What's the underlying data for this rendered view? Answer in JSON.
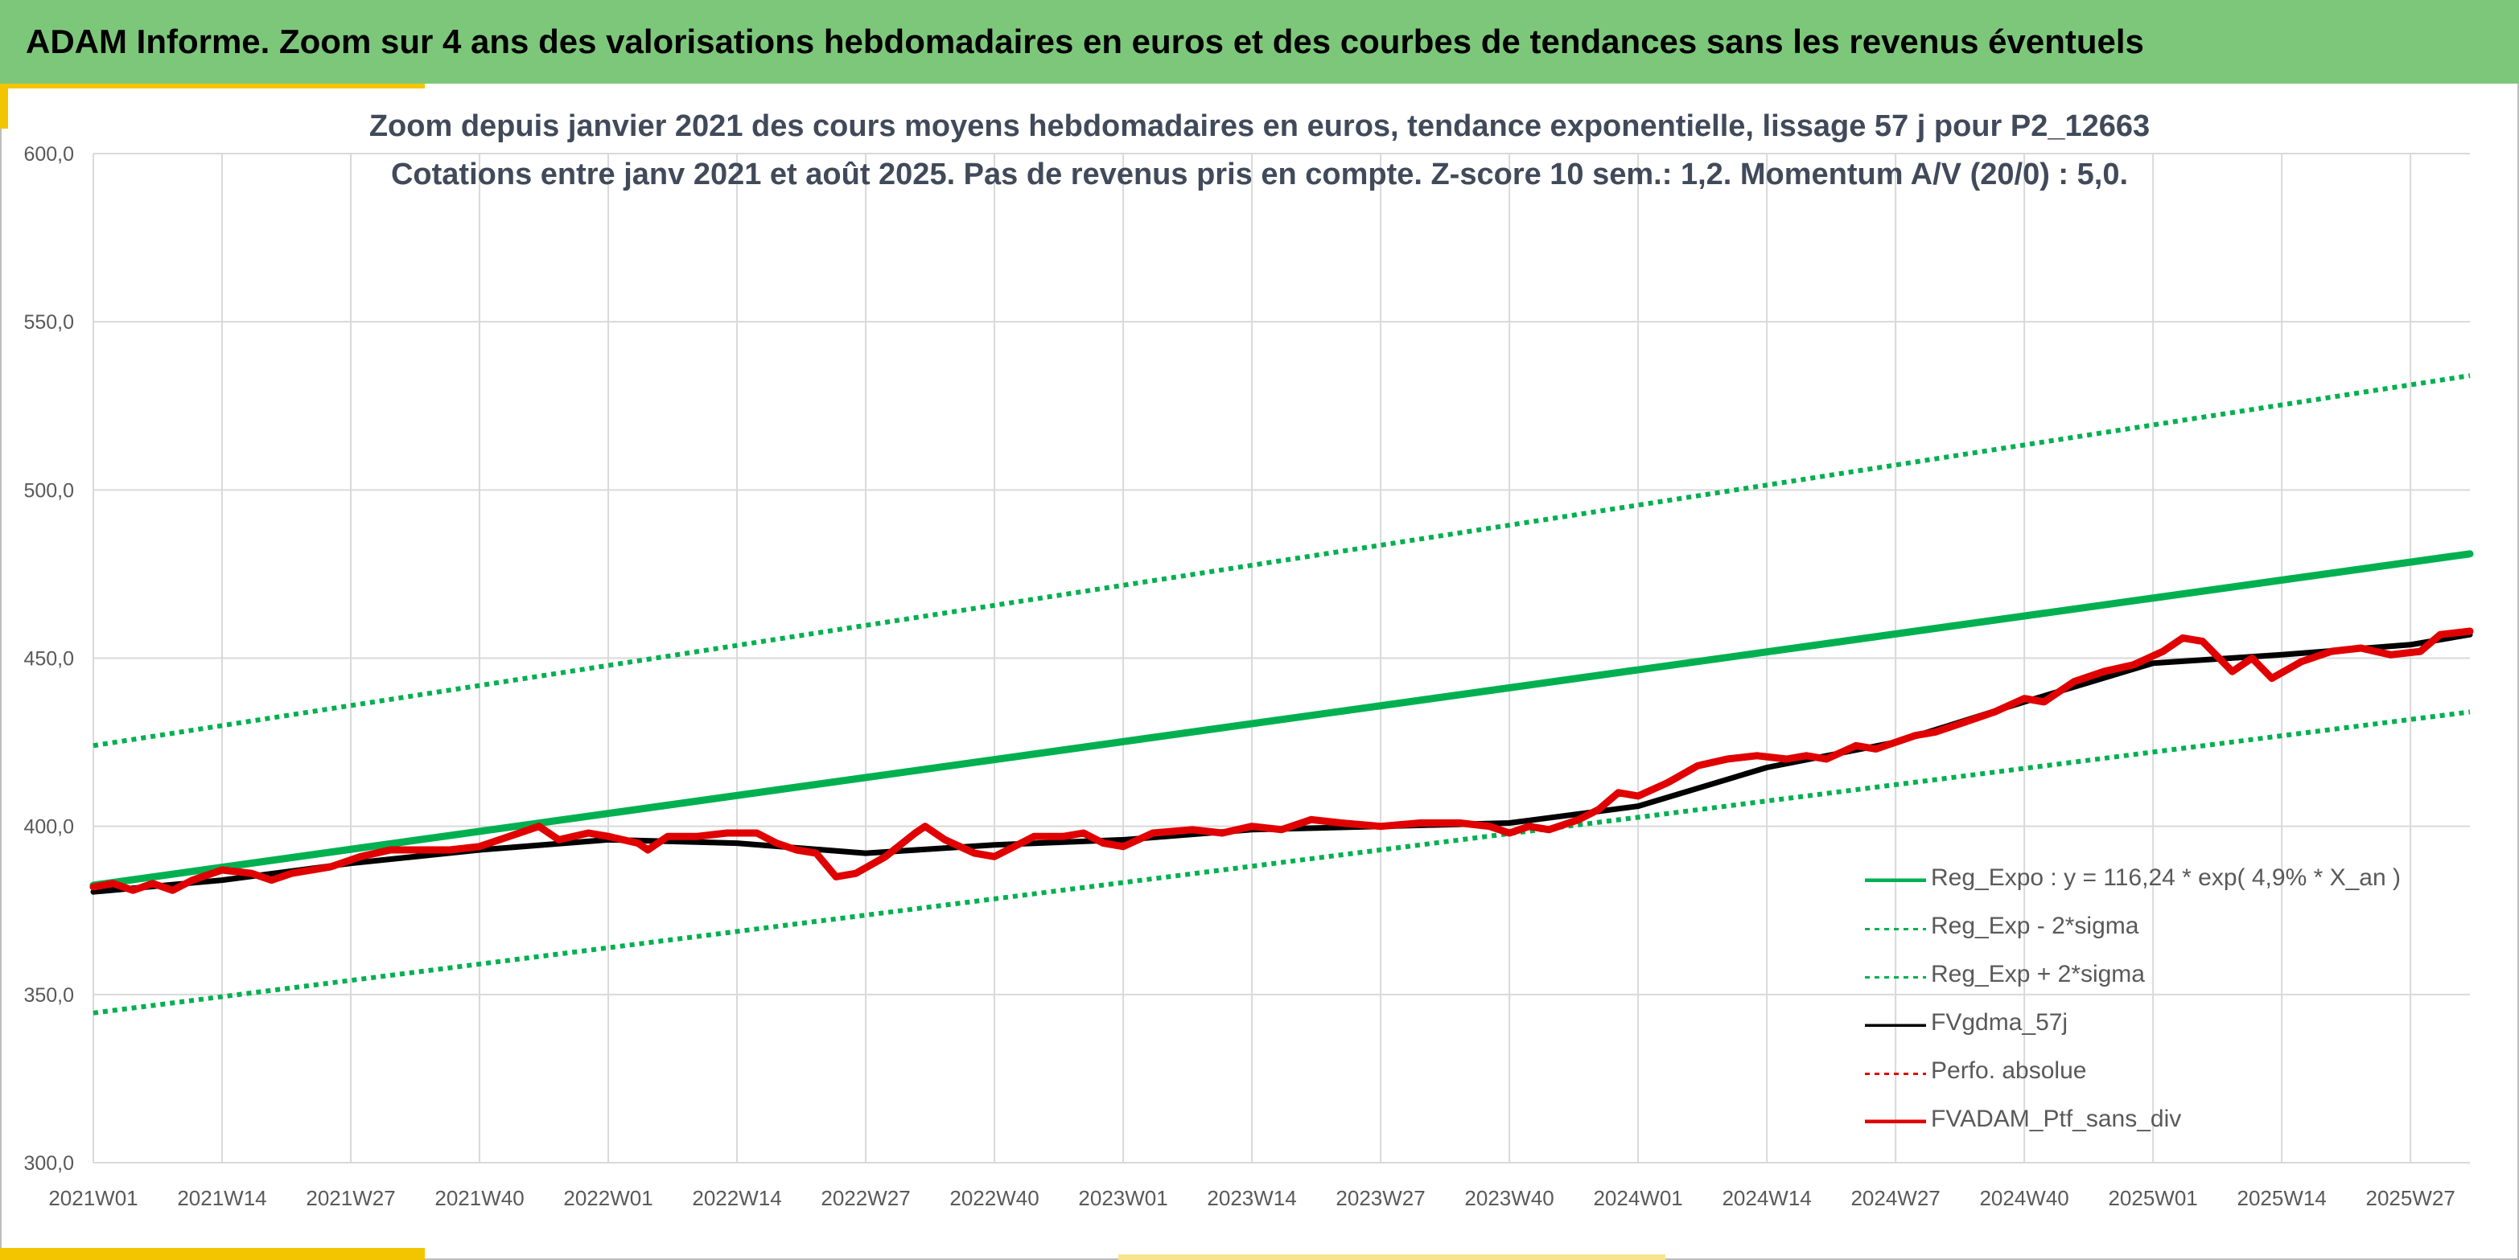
{
  "header": {
    "title": "ADAM Informe. Zoom sur 4 ans des valorisations hebdomadaires en euros et des courbes de tendances sans les revenus éventuels",
    "background": "#7dc77a",
    "accent": "#f2c500"
  },
  "chart_data": {
    "type": "line",
    "title": "Zoom depuis janvier 2021 des cours moyens hebdomadaires en euros, tendance exponentielle, lissage 57 j pour P2_12663",
    "subtitle": "Cotations entre janv 2021 et août 2025. Pas de revenus pris en compte. Z-score 10 sem.: 1,2. Momentum A/V (20/0) : 5,0.",
    "ylim": [
      300,
      600
    ],
    "yticks": [
      "300,0",
      "350,0",
      "400,0",
      "450,0",
      "500,0",
      "550,0",
      "600,0"
    ],
    "x_categories": [
      "2021W01",
      "2021W14",
      "2021W27",
      "2021W40",
      "2022W01",
      "2022W14",
      "2022W27",
      "2022W40",
      "2023W01",
      "2023W14",
      "2023W27",
      "2023W40",
      "2024W01",
      "2024W14",
      "2024W27",
      "2024W40",
      "2025W01",
      "2025W14",
      "2025W27"
    ],
    "x_weeks_total": 241,
    "grid": true,
    "legend_position": "bottom-right",
    "series": [
      {
        "name": "Reg_Expo : y = 116,24 * exp( 4,9% *  X_an )",
        "style": "solid-thick",
        "color": "#00b050",
        "points": [
          [
            0,
            382.5
          ],
          [
            240,
            481
          ]
        ]
      },
      {
        "name": "Reg_Exp - 2*sigma",
        "style": "dotted",
        "color": "#00b050",
        "points": [
          [
            0,
            344.5
          ],
          [
            240,
            434
          ]
        ]
      },
      {
        "name": "Reg_Exp + 2*sigma",
        "style": "dotted",
        "color": "#00b050",
        "points": [
          [
            0,
            424
          ],
          [
            240,
            534
          ]
        ]
      },
      {
        "name": "FVgdma_57j",
        "style": "solid",
        "color": "#000000",
        "points": [
          [
            0,
            380.5
          ],
          [
            13,
            384
          ],
          [
            26,
            389
          ],
          [
            39,
            393
          ],
          [
            52,
            396
          ],
          [
            65,
            395
          ],
          [
            78,
            392
          ],
          [
            91,
            394.5
          ],
          [
            104,
            396
          ],
          [
            117,
            399
          ],
          [
            130,
            400
          ],
          [
            143,
            401
          ],
          [
            156,
            406
          ],
          [
            169,
            417.5
          ],
          [
            182,
            425
          ],
          [
            195,
            437
          ],
          [
            208,
            448.5
          ],
          [
            221,
            451
          ],
          [
            234,
            454
          ],
          [
            240,
            457
          ]
        ]
      },
      {
        "name": "Perfo. absolue",
        "style": "dotted",
        "color": "#e00000",
        "points": []
      },
      {
        "name": "FVADAM_Ptf_sans_div",
        "style": "solid-thick",
        "color": "#e00000",
        "points": [
          [
            0,
            382
          ],
          [
            2,
            383
          ],
          [
            4,
            381
          ],
          [
            6,
            383
          ],
          [
            8,
            381
          ],
          [
            10,
            384
          ],
          [
            13,
            387
          ],
          [
            16,
            386
          ],
          [
            18,
            384
          ],
          [
            20,
            386
          ],
          [
            24,
            388
          ],
          [
            27,
            391
          ],
          [
            30,
            393
          ],
          [
            33,
            393
          ],
          [
            36,
            393
          ],
          [
            39,
            394
          ],
          [
            42,
            397
          ],
          [
            45,
            400
          ],
          [
            47,
            396
          ],
          [
            50,
            398
          ],
          [
            52,
            397
          ],
          [
            55,
            395
          ],
          [
            56,
            393
          ],
          [
            58,
            397
          ],
          [
            61,
            397
          ],
          [
            64,
            398
          ],
          [
            67,
            398
          ],
          [
            69,
            395
          ],
          [
            71,
            393
          ],
          [
            73,
            392
          ],
          [
            75,
            385
          ],
          [
            77,
            386
          ],
          [
            80,
            391
          ],
          [
            83,
            398
          ],
          [
            84,
            400
          ],
          [
            86,
            396
          ],
          [
            89,
            392
          ],
          [
            91,
            391
          ],
          [
            93,
            394
          ],
          [
            95,
            397
          ],
          [
            98,
            397
          ],
          [
            100,
            398
          ],
          [
            102,
            395
          ],
          [
            104,
            394
          ],
          [
            107,
            398
          ],
          [
            111,
            399
          ],
          [
            114,
            398
          ],
          [
            117,
            400
          ],
          [
            120,
            399
          ],
          [
            123,
            402
          ],
          [
            126,
            401
          ],
          [
            130,
            400
          ],
          [
            134,
            401
          ],
          [
            138,
            401
          ],
          [
            141,
            400
          ],
          [
            143,
            398
          ],
          [
            145,
            400
          ],
          [
            147,
            399
          ],
          [
            150,
            402
          ],
          [
            152,
            405
          ],
          [
            154,
            410
          ],
          [
            156,
            409
          ],
          [
            159,
            413
          ],
          [
            162,
            418
          ],
          [
            165,
            420
          ],
          [
            168,
            421
          ],
          [
            171,
            420
          ],
          [
            173,
            421
          ],
          [
            175,
            420
          ],
          [
            178,
            424
          ],
          [
            180,
            423
          ],
          [
            182,
            425
          ],
          [
            184,
            427
          ],
          [
            186,
            428
          ],
          [
            189,
            431
          ],
          [
            192,
            434
          ],
          [
            195,
            438
          ],
          [
            197,
            437
          ],
          [
            200,
            443
          ],
          [
            203,
            446
          ],
          [
            206,
            448
          ],
          [
            209,
            452
          ],
          [
            211,
            456
          ],
          [
            213,
            455
          ],
          [
            216,
            446
          ],
          [
            218,
            450
          ],
          [
            220,
            444
          ],
          [
            223,
            449
          ],
          [
            226,
            452
          ],
          [
            229,
            453
          ],
          [
            232,
            451
          ],
          [
            235,
            452
          ],
          [
            237,
            457
          ],
          [
            240,
            458
          ]
        ]
      }
    ]
  }
}
